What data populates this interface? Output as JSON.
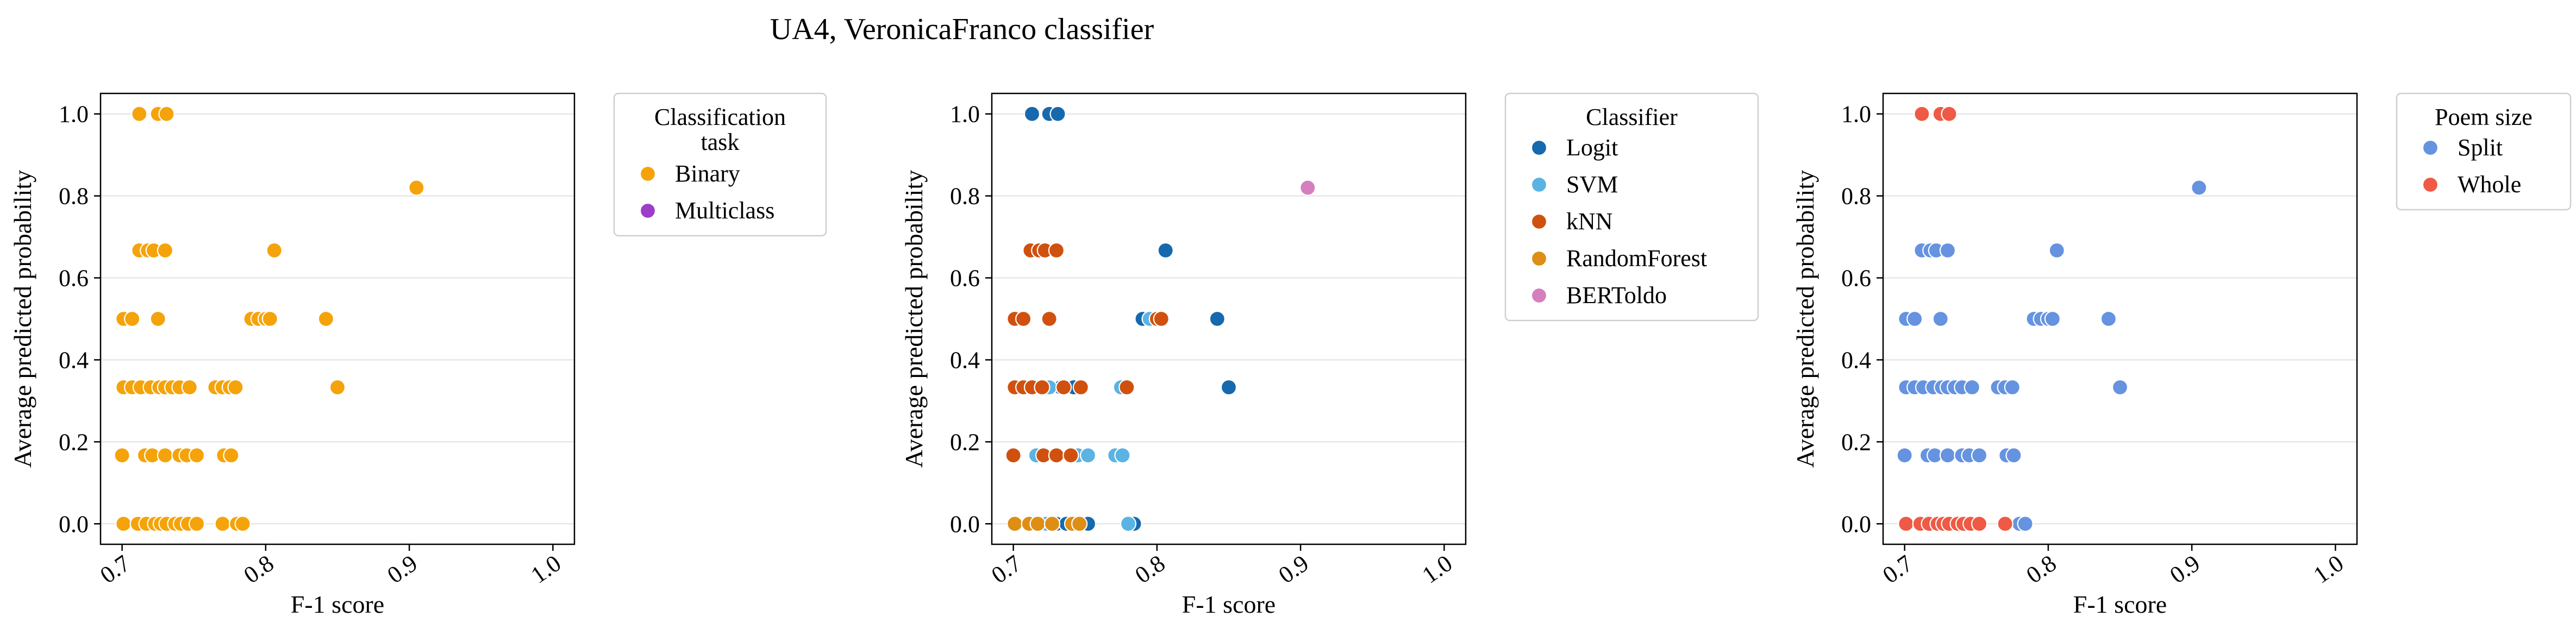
{
  "figure_title": "UA4, VeronicaFranco classifier",
  "chart_data": [
    {
      "type": "scatter",
      "xlabel": "F-1 score",
      "ylabel": "Average predicted probability",
      "xlim": [
        0.685,
        1.015
      ],
      "ylim": [
        -0.05,
        1.05
      ],
      "xticks": [
        "0.7",
        "0.8",
        "0.9",
        "1.0"
      ],
      "yticks": [
        "0.0",
        "0.2",
        "0.4",
        "0.6",
        "0.8",
        "1.0"
      ],
      "grid": "y",
      "legend": {
        "title": "Classification task",
        "placement": "outside-upper-right"
      },
      "series": [
        {
          "name": "Binary",
          "color": "#f5a30a",
          "points": [
            [
              0.712,
              1.0
            ],
            [
              0.725,
              1.0
            ],
            [
              0.731,
              1.0
            ],
            [
              0.905,
              0.82
            ],
            [
              0.712,
              0.667
            ],
            [
              0.718,
              0.667
            ],
            [
              0.722,
              0.667
            ],
            [
              0.73,
              0.667
            ],
            [
              0.806,
              0.667
            ],
            [
              0.701,
              0.5
            ],
            [
              0.707,
              0.5
            ],
            [
              0.725,
              0.5
            ],
            [
              0.79,
              0.5
            ],
            [
              0.795,
              0.5
            ],
            [
              0.8,
              0.5
            ],
            [
              0.803,
              0.5
            ],
            [
              0.842,
              0.5
            ],
            [
              0.701,
              0.333
            ],
            [
              0.707,
              0.333
            ],
            [
              0.713,
              0.333
            ],
            [
              0.72,
              0.333
            ],
            [
              0.726,
              0.333
            ],
            [
              0.73,
              0.333
            ],
            [
              0.735,
              0.333
            ],
            [
              0.74,
              0.333
            ],
            [
              0.747,
              0.333
            ],
            [
              0.765,
              0.333
            ],
            [
              0.77,
              0.333
            ],
            [
              0.775,
              0.333
            ],
            [
              0.779,
              0.333
            ],
            [
              0.85,
              0.333
            ],
            [
              0.7,
              0.167
            ],
            [
              0.716,
              0.167
            ],
            [
              0.721,
              0.167
            ],
            [
              0.73,
              0.167
            ],
            [
              0.74,
              0.167
            ],
            [
              0.745,
              0.167
            ],
            [
              0.752,
              0.167
            ],
            [
              0.771,
              0.167
            ],
            [
              0.776,
              0.167
            ],
            [
              0.701,
              0.0
            ],
            [
              0.711,
              0.0
            ],
            [
              0.717,
              0.0
            ],
            [
              0.723,
              0.0
            ],
            [
              0.727,
              0.0
            ],
            [
              0.731,
              0.0
            ],
            [
              0.737,
              0.0
            ],
            [
              0.741,
              0.0
            ],
            [
              0.746,
              0.0
            ],
            [
              0.752,
              0.0
            ],
            [
              0.77,
              0.0
            ],
            [
              0.78,
              0.0
            ],
            [
              0.784,
              0.0
            ]
          ]
        },
        {
          "name": "Multiclass",
          "color": "#9b3ec9",
          "points": []
        }
      ]
    },
    {
      "type": "scatter",
      "xlabel": "F-1 score",
      "ylabel": "Average predicted probability",
      "xlim": [
        0.685,
        1.015
      ],
      "ylim": [
        -0.05,
        1.05
      ],
      "xticks": [
        "0.7",
        "0.8",
        "0.9",
        "1.0"
      ],
      "yticks": [
        "0.0",
        "0.2",
        "0.4",
        "0.6",
        "0.8",
        "1.0"
      ],
      "grid": "y",
      "legend": {
        "title": "Classifier",
        "placement": "outside-upper-right"
      },
      "series": [
        {
          "name": "Logit",
          "color": "#1669ad",
          "points": [
            [
              0.713,
              1.0
            ],
            [
              0.725,
              1.0
            ],
            [
              0.731,
              1.0
            ],
            [
              0.806,
              0.667
            ],
            [
              0.79,
              0.5
            ],
            [
              0.795,
              0.5
            ],
            [
              0.842,
              0.5
            ],
            [
              0.733,
              0.333
            ],
            [
              0.742,
              0.333
            ],
            [
              0.85,
              0.333
            ],
            [
              0.73,
              0.0
            ],
            [
              0.737,
              0.0
            ],
            [
              0.752,
              0.0
            ],
            [
              0.784,
              0.0
            ]
          ]
        },
        {
          "name": "SVM",
          "color": "#5ab3e3",
          "points": [
            [
              0.795,
              0.5
            ],
            [
              0.725,
              0.333
            ],
            [
              0.775,
              0.333
            ],
            [
              0.716,
              0.167
            ],
            [
              0.745,
              0.167
            ],
            [
              0.752,
              0.167
            ],
            [
              0.771,
              0.167
            ],
            [
              0.776,
              0.167
            ],
            [
              0.723,
              0.0
            ],
            [
              0.78,
              0.0
            ]
          ]
        },
        {
          "name": "kNN",
          "color": "#d0510f",
          "points": [
            [
              0.712,
              0.667
            ],
            [
              0.718,
              0.667
            ],
            [
              0.722,
              0.667
            ],
            [
              0.73,
              0.667
            ],
            [
              0.701,
              0.5
            ],
            [
              0.707,
              0.5
            ],
            [
              0.725,
              0.5
            ],
            [
              0.8,
              0.5
            ],
            [
              0.803,
              0.5
            ],
            [
              0.701,
              0.333
            ],
            [
              0.707,
              0.333
            ],
            [
              0.713,
              0.333
            ],
            [
              0.72,
              0.333
            ],
            [
              0.735,
              0.333
            ],
            [
              0.747,
              0.333
            ],
            [
              0.779,
              0.333
            ],
            [
              0.7,
              0.167
            ],
            [
              0.721,
              0.167
            ],
            [
              0.73,
              0.167
            ],
            [
              0.74,
              0.167
            ]
          ]
        },
        {
          "name": "RandomForest",
          "color": "#de8e14",
          "points": [
            [
              0.701,
              0.0
            ],
            [
              0.711,
              0.0
            ],
            [
              0.717,
              0.0
            ],
            [
              0.727,
              0.0
            ],
            [
              0.741,
              0.0
            ],
            [
              0.746,
              0.0
            ]
          ]
        },
        {
          "name": "BERToldo",
          "color": "#d57fc0",
          "points": [
            [
              0.905,
              0.82
            ]
          ]
        }
      ]
    },
    {
      "type": "scatter",
      "xlabel": "F-1 score",
      "ylabel": "Average predicted probability",
      "xlim": [
        0.685,
        1.015
      ],
      "ylim": [
        -0.05,
        1.05
      ],
      "xticks": [
        "0.7",
        "0.8",
        "0.9",
        "1.0"
      ],
      "yticks": [
        "0.0",
        "0.2",
        "0.4",
        "0.6",
        "0.8",
        "1.0"
      ],
      "grid": "y",
      "legend": {
        "title": "Poem size",
        "placement": "outside-upper-right"
      },
      "series": [
        {
          "name": "Split",
          "color": "#6593e0",
          "points": [
            [
              0.905,
              0.82
            ],
            [
              0.712,
              0.667
            ],
            [
              0.718,
              0.667
            ],
            [
              0.722,
              0.667
            ],
            [
              0.73,
              0.667
            ],
            [
              0.806,
              0.667
            ],
            [
              0.701,
              0.5
            ],
            [
              0.707,
              0.5
            ],
            [
              0.725,
              0.5
            ],
            [
              0.79,
              0.5
            ],
            [
              0.795,
              0.5
            ],
            [
              0.8,
              0.5
            ],
            [
              0.803,
              0.5
            ],
            [
              0.842,
              0.5
            ],
            [
              0.701,
              0.333
            ],
            [
              0.707,
              0.333
            ],
            [
              0.713,
              0.333
            ],
            [
              0.72,
              0.333
            ],
            [
              0.726,
              0.333
            ],
            [
              0.73,
              0.333
            ],
            [
              0.735,
              0.333
            ],
            [
              0.74,
              0.333
            ],
            [
              0.747,
              0.333
            ],
            [
              0.765,
              0.333
            ],
            [
              0.77,
              0.333
            ],
            [
              0.775,
              0.333
            ],
            [
              0.85,
              0.333
            ],
            [
              0.7,
              0.167
            ],
            [
              0.716,
              0.167
            ],
            [
              0.721,
              0.167
            ],
            [
              0.73,
              0.167
            ],
            [
              0.74,
              0.167
            ],
            [
              0.745,
              0.167
            ],
            [
              0.752,
              0.167
            ],
            [
              0.771,
              0.167
            ],
            [
              0.776,
              0.167
            ],
            [
              0.78,
              0.0
            ],
            [
              0.784,
              0.0
            ]
          ]
        },
        {
          "name": "Whole",
          "color": "#ee5a45",
          "points": [
            [
              0.712,
              1.0
            ],
            [
              0.725,
              1.0
            ],
            [
              0.731,
              1.0
            ],
            [
              0.701,
              0.0
            ],
            [
              0.711,
              0.0
            ],
            [
              0.717,
              0.0
            ],
            [
              0.723,
              0.0
            ],
            [
              0.727,
              0.0
            ],
            [
              0.731,
              0.0
            ],
            [
              0.737,
              0.0
            ],
            [
              0.741,
              0.0
            ],
            [
              0.746,
              0.0
            ],
            [
              0.752,
              0.0
            ],
            [
              0.77,
              0.0
            ]
          ]
        }
      ]
    }
  ]
}
